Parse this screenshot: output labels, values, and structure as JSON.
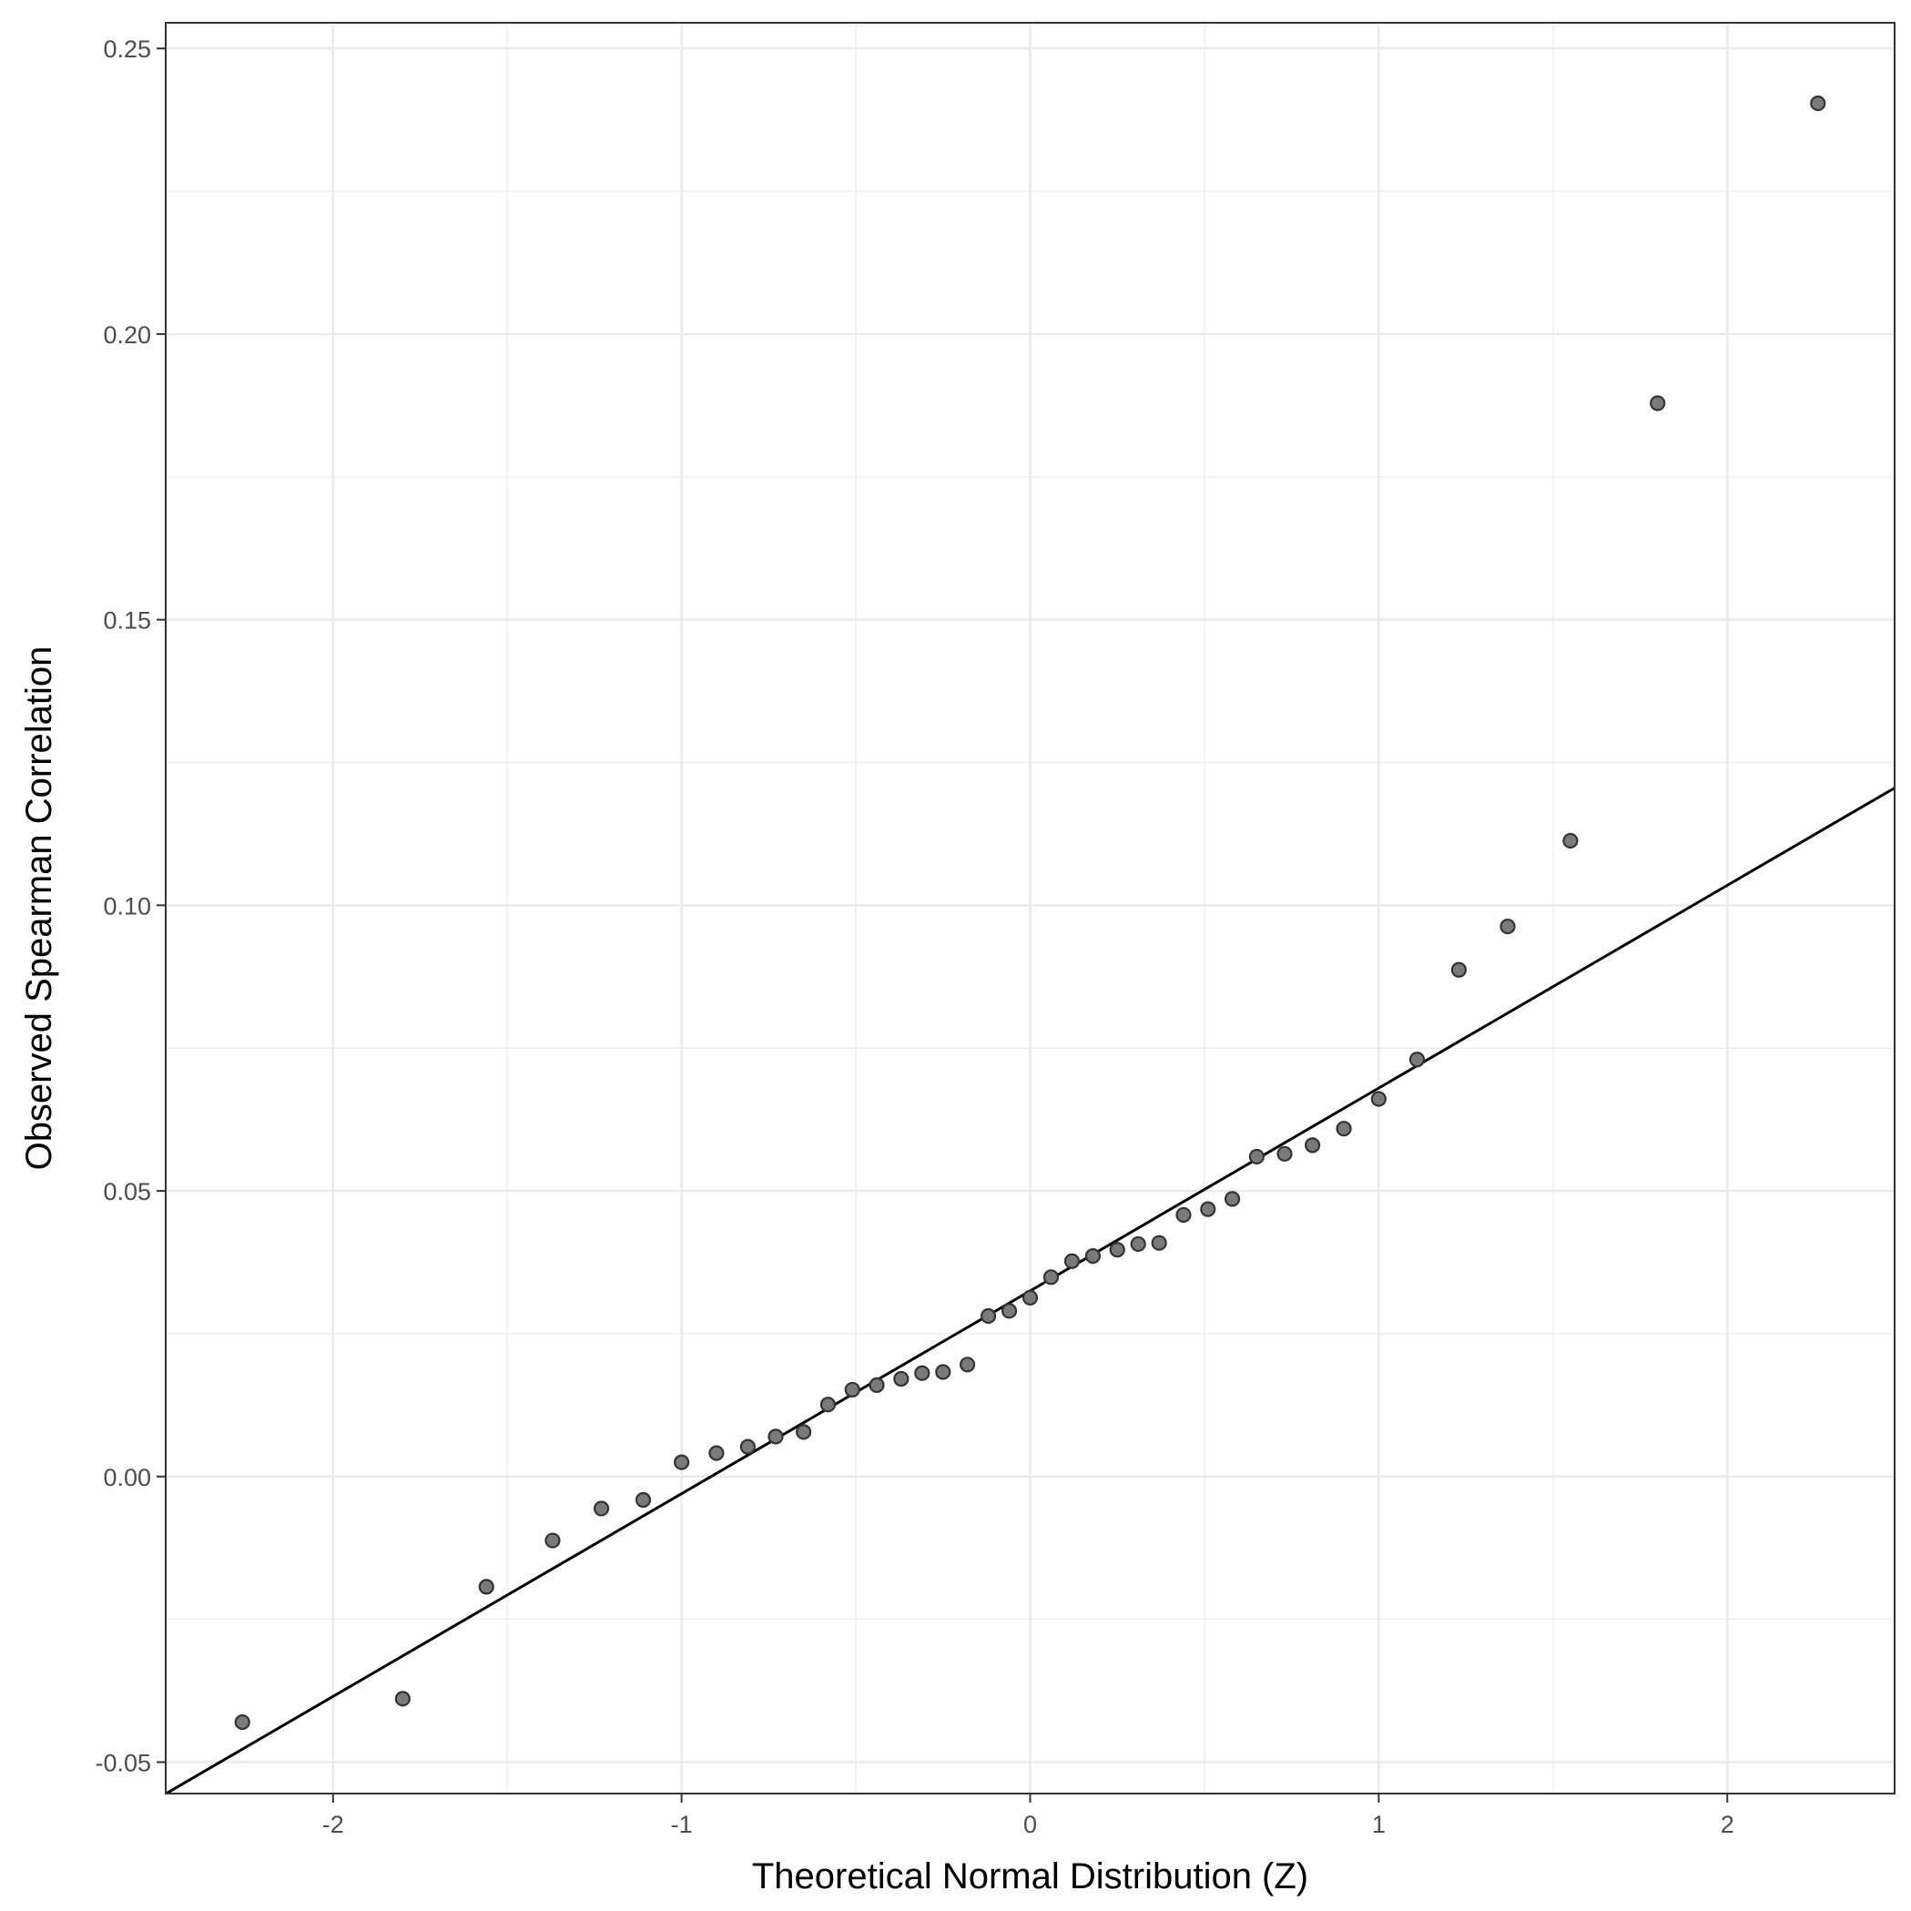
{
  "chart_data": {
    "type": "scatter",
    "title": "",
    "xlabel": "Theoretical Normal Distribution (Z)",
    "ylabel": "Observed Spearman Correlation",
    "xlim": [
      -2.48,
      2.48
    ],
    "ylim": [
      -0.0555,
      0.2545
    ],
    "x_ticks": [
      -2,
      -1,
      0,
      1,
      2
    ],
    "x_tick_labels": [
      "-2",
      "-1",
      "0",
      "1",
      "2"
    ],
    "y_ticks": [
      -0.05,
      0.0,
      0.05,
      0.1,
      0.15,
      0.2,
      0.25
    ],
    "y_tick_labels": [
      "-0.05",
      "0.00",
      "0.05",
      "0.10",
      "0.15",
      "0.20",
      "0.25"
    ],
    "grid": true,
    "legend": "none",
    "colors": {
      "point_fill": "#7a7a7a",
      "point_stroke": "#333333",
      "line": "#000000",
      "grid": "#ebebeb",
      "panel_border": "#333333"
    },
    "points": [
      {
        "x": -2.26,
        "y": -0.043
      },
      {
        "x": -1.8,
        "y": -0.0389
      },
      {
        "x": -1.56,
        "y": -0.0193
      },
      {
        "x": -1.37,
        "y": -0.0112
      },
      {
        "x": -1.23,
        "y": -0.0056
      },
      {
        "x": -1.11,
        "y": -0.0041
      },
      {
        "x": -1.0,
        "y": 0.0025
      },
      {
        "x": -0.9,
        "y": 0.0041
      },
      {
        "x": -0.81,
        "y": 0.0052
      },
      {
        "x": -0.73,
        "y": 0.007
      },
      {
        "x": -0.65,
        "y": 0.0078
      },
      {
        "x": -0.58,
        "y": 0.0126
      },
      {
        "x": -0.51,
        "y": 0.0152
      },
      {
        "x": -0.44,
        "y": 0.016
      },
      {
        "x": -0.37,
        "y": 0.0171
      },
      {
        "x": -0.31,
        "y": 0.0181
      },
      {
        "x": -0.25,
        "y": 0.0183
      },
      {
        "x": -0.18,
        "y": 0.0196
      },
      {
        "x": -0.12,
        "y": 0.0281
      },
      {
        "x": -0.06,
        "y": 0.029
      },
      {
        "x": 0.0,
        "y": 0.0313
      },
      {
        "x": 0.06,
        "y": 0.0349
      },
      {
        "x": 0.12,
        "y": 0.0377
      },
      {
        "x": 0.18,
        "y": 0.0386
      },
      {
        "x": 0.25,
        "y": 0.0397
      },
      {
        "x": 0.31,
        "y": 0.0407
      },
      {
        "x": 0.37,
        "y": 0.0409
      },
      {
        "x": 0.44,
        "y": 0.0458
      },
      {
        "x": 0.51,
        "y": 0.0468
      },
      {
        "x": 0.58,
        "y": 0.0486
      },
      {
        "x": 0.65,
        "y": 0.056
      },
      {
        "x": 0.73,
        "y": 0.0565
      },
      {
        "x": 0.81,
        "y": 0.058
      },
      {
        "x": 0.9,
        "y": 0.0609
      },
      {
        "x": 1.0,
        "y": 0.0661
      },
      {
        "x": 1.11,
        "y": 0.073
      },
      {
        "x": 1.23,
        "y": 0.0887
      },
      {
        "x": 1.37,
        "y": 0.0963
      },
      {
        "x": 1.55,
        "y": 0.1113
      },
      {
        "x": 1.8,
        "y": 0.1879
      },
      {
        "x": 2.26,
        "y": 0.2404
      }
    ],
    "reference_line": {
      "intercept": 0.0325,
      "slope": 0.0355
    }
  }
}
